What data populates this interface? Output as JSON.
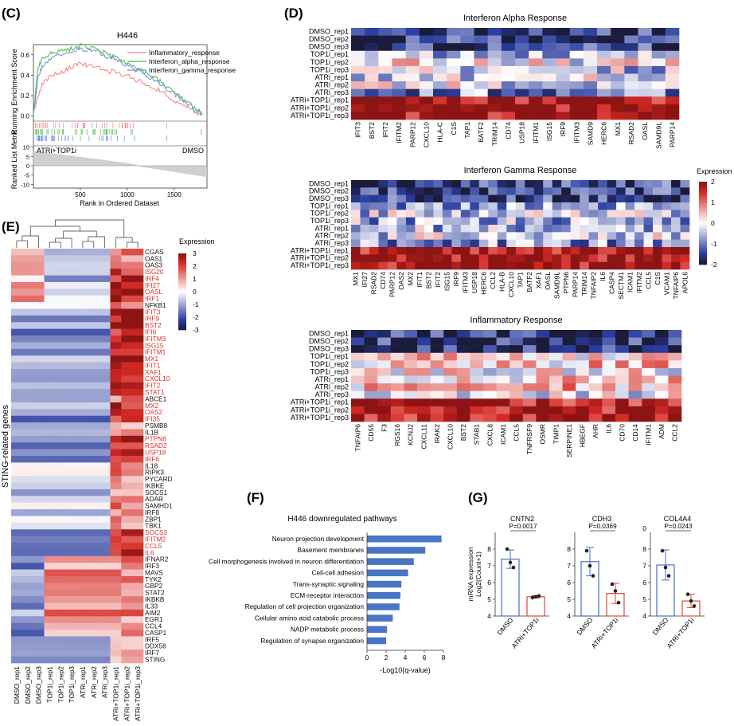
{
  "panel_labels": {
    "c": "(C)",
    "d": "(D)",
    "e": "(E)",
    "f": "(F)",
    "g": "(G)"
  },
  "gsea": {
    "title": "H446",
    "ylabel_top": "Running Enrichment Score",
    "ylabel_bottom": "Ranked List Metric",
    "xlabel": "Rank in Ordered Dataset",
    "left_group": "ATRi+TOP1i",
    "right_group": "DMSO",
    "y_ticks": [
      "0.6",
      "0.4",
      "0.2",
      "0.0"
    ],
    "metric_ticks": [
      "10",
      "5",
      "0",
      "-5",
      "-10"
    ],
    "x_ticks": [
      "500",
      "1000",
      "1500"
    ],
    "colors": {
      "inflammatory": "#f08080",
      "alpha": "#49b649",
      "gamma": "#6f8fd8"
    }
  },
  "chart_data": [
    {
      "type": "line",
      "title": "H446",
      "xlabel": "Rank in Ordered Dataset",
      "ylabel": "Running Enrichment Score",
      "xlim": [
        0,
        1850
      ],
      "ylim": [
        -0.05,
        0.7
      ],
      "series": [
        {
          "name": "Inflammatory_response",
          "x": [
            0,
            50,
            100,
            200,
            300,
            400,
            500,
            600,
            700,
            800,
            900,
            1000,
            1100,
            1200,
            1300,
            1400,
            1500,
            1600,
            1700,
            1800
          ],
          "values": [
            0.02,
            0.2,
            0.33,
            0.4,
            0.42,
            0.48,
            0.52,
            0.49,
            0.47,
            0.44,
            0.42,
            0.4,
            0.35,
            0.32,
            0.27,
            0.22,
            0.16,
            0.11,
            0.06,
            0.01
          ]
        },
        {
          "name": "Interferon_alpha_response",
          "x": [
            0,
            50,
            100,
            200,
            300,
            400,
            500,
            600,
            700,
            800,
            900,
            1000,
            1100,
            1200,
            1300,
            1400,
            1500,
            1600,
            1700,
            1800
          ],
          "values": [
            0.02,
            0.48,
            0.58,
            0.62,
            0.64,
            0.66,
            0.69,
            0.67,
            0.64,
            0.6,
            0.57,
            0.52,
            0.47,
            0.42,
            0.37,
            0.3,
            0.23,
            0.16,
            0.09,
            0.02
          ]
        },
        {
          "name": "Interferon_gamma_response",
          "x": [
            0,
            50,
            100,
            200,
            300,
            400,
            500,
            600,
            700,
            800,
            900,
            1000,
            1100,
            1200,
            1300,
            1400,
            1500,
            1600,
            1700,
            1800
          ],
          "values": [
            0.02,
            0.38,
            0.5,
            0.58,
            0.6,
            0.63,
            0.66,
            0.64,
            0.62,
            0.58,
            0.55,
            0.5,
            0.45,
            0.4,
            0.35,
            0.29,
            0.22,
            0.15,
            0.08,
            0.02
          ]
        }
      ]
    },
    {
      "type": "heatmap",
      "title": "Interferon Alpha Response",
      "rows": [
        "DMSO_rep1",
        "DMSO_rep2",
        "DMSO_rep3",
        "TOP1i_rep1",
        "TOP1i_rep2",
        "TOP1i_rep3",
        "ATRi_rep1",
        "ATRi_rep2",
        "ATRi_rep3",
        "ATRi+TOP1i_rep1",
        "ATRi+TOP1i_rep2",
        "ATRi+TOP1i_rep3"
      ],
      "columns": [
        "IFIT3",
        "BST2",
        "IFIT2",
        "IFITM2",
        "PARP12",
        "CXCL10",
        "HLA-C",
        "C1S",
        "TAP1",
        "BATF2",
        "TRIM14",
        "CD74",
        "USP18",
        "IFITM1",
        "ISG15",
        "IRF9",
        "IFITM3",
        "SAMD9",
        "HERC6",
        "MX1",
        "RSAD2",
        "OASL",
        "SAMD9L",
        "PARP14"
      ],
      "row_means": [
        -1.6,
        -1.6,
        -1.6,
        -0.6,
        0.0,
        -0.4,
        -0.2,
        -0.2,
        -0.9,
        1.9,
        2.0,
        2.0
      ],
      "legend": "Expression",
      "range": [
        -2,
        2
      ]
    },
    {
      "type": "heatmap",
      "title": "Interferon Gamma Response",
      "rows": [
        "DMSO_rep1",
        "DMSO_rep2",
        "DMSO_rep3",
        "TOP1i_rep1",
        "TOP1i_rep2",
        "TOP1i_rep3",
        "ATRi_rep1",
        "ATRi_rep2",
        "ATRi_rep3",
        "ATRi+TOP1i_rep1",
        "ATRi+TOP1i_rep2",
        "ATRi+TOP1i_rep3"
      ],
      "columns": [
        "MX1",
        "IFI27",
        "RSAD2",
        "CD74",
        "PARP12",
        "OAS2",
        "MX2",
        "IFIT1",
        "BST2",
        "IFIT2",
        "ISG15",
        "IRF9",
        "IFITM3",
        "USP18",
        "HERC6",
        "CCL2",
        "HLA-B",
        "CXCL10",
        "TAP1",
        "BATF2",
        "XAF1",
        "OASL",
        "SAMD9L",
        "PTPN6",
        "PARP14",
        "TRIM14",
        "TNFAIP2",
        "IL6",
        "CASP4",
        "SECTM1",
        "ICAM1",
        "IFITM2",
        "CCL5",
        "C1S",
        "VCAM1",
        "TNFAIP6",
        "APOL6"
      ],
      "row_means": [
        -1.5,
        -1.5,
        -1.5,
        -0.8,
        -0.4,
        -0.6,
        -0.5,
        -0.3,
        -0.8,
        1.9,
        2.0,
        2.0
      ],
      "legend": "Expression",
      "range": [
        -2,
        2
      ]
    },
    {
      "type": "heatmap",
      "title": "Inflammatory Response",
      "rows": [
        "DMSO_rep1",
        "DMSO_rep2",
        "DMSO_rep3",
        "TOP1i_rep1",
        "TOP1i_rep2",
        "TOP1i_rep3",
        "ATRi_rep1",
        "ATRi_rep2",
        "ATRi_rep3",
        "ATRi+TOP1i_rep1",
        "ATRi+TOP1i_rep2",
        "ATRi+TOP1i_rep3"
      ],
      "columns": [
        "TNFAIP6",
        "CD55",
        "F3",
        "RGS16",
        "KCNJ2",
        "CXCL11",
        "IRAK2",
        "CXCL10",
        "BST2",
        "STAB1",
        "CXCL8",
        "ICAM1",
        "CCL5",
        "TNFRSF9",
        "OSMR",
        "TIMP1",
        "SERPINE1",
        "HBEGF",
        "AHR",
        "IL6",
        "CD70",
        "CD14",
        "IFITM1",
        "ADM",
        "CCL2"
      ],
      "row_means": [
        -1.7,
        -1.7,
        -1.7,
        0.2,
        0.3,
        0.0,
        0.3,
        0.4,
        -0.2,
        1.8,
        1.9,
        1.9
      ],
      "legend": "",
      "range": [
        -2,
        2
      ]
    },
    {
      "type": "heatmap",
      "title": "",
      "ylabel": "STING-related genes",
      "columns": [
        "DMSO_rep1",
        "DMSO_rep2",
        "DMSO_rep3",
        "TOP1i_rep1",
        "TOP1i_rep2",
        "TOP1i_rep3",
        "ATRi_rep1",
        "ATRi_rep2",
        "ATRi_rep3",
        "ATRi+TOP1i_rep1",
        "ATRi+TOP1i_rep2",
        "ATRi+TOP1i_rep3"
      ],
      "rows": [
        "CGAS",
        "OAS1",
        "OAS3",
        "ISG20",
        "IRF4",
        "IFI27",
        "OASL",
        "IRF1",
        "NFKB1",
        "IFIT3",
        "IRF9",
        "BST2",
        "IFI6",
        "IFITM3",
        "ISG15",
        "IFITM1",
        "MX1",
        "IFIT1",
        "XAF1",
        "CXCL10",
        "IFIT2",
        "STAT1",
        "ABCE1",
        "MX2",
        "OAS2",
        "IFI35",
        "PSMB8",
        "IL1B",
        "PTPN6",
        "RSAD2",
        "USP18",
        "IRF6",
        "IL18",
        "RIPK3",
        "PYCARD",
        "IKBKE",
        "SOCS1",
        "ADAR",
        "SAMHD1",
        "IRF8",
        "ZBP1",
        "TBK1",
        "SOCS3",
        "IFITM2",
        "CCL5",
        "IL6",
        "IFNAR2",
        "IRF3",
        "MAVS",
        "TYK2",
        "GBP2",
        "STAT2",
        "IKBKB",
        "IL33",
        "AIM2",
        "EGR1",
        "CCL4",
        "CASP1",
        "IRF5",
        "DDX58",
        "IRF7",
        "STING"
      ],
      "red_rows": [
        "ISG20",
        "IRF4",
        "IFI27",
        "OASL",
        "IRF1",
        "IFIT3",
        "IRF9",
        "BST2",
        "IFI6",
        "IFITM3",
        "ISG15",
        "IFITM1",
        "MX1",
        "IFIT1",
        "XAF1",
        "CXCL10",
        "IFIT2",
        "STAT1",
        "MX2",
        "OAS2",
        "IFI35",
        "PTPN6",
        "RSAD2",
        "USP18",
        "IRF6",
        "SOCS3",
        "IFITM2",
        "CCL5",
        "IL6"
      ],
      "legend": "Expression",
      "legend_ticks": [
        "3",
        "2",
        "1",
        "0",
        "-1",
        "-2",
        "-3"
      ],
      "range": [
        -3,
        3
      ]
    },
    {
      "type": "bar",
      "orientation": "horizontal",
      "title": "H446 downregulated pathways",
      "xlabel": "-Log10(q-value)",
      "xlim": [
        0,
        8
      ],
      "x_ticks": [
        "0",
        "2",
        "4",
        "6",
        "8"
      ],
      "categories": [
        "Neuron projection development",
        "Basement membranes",
        "Cell morphogenesis involved in neuron differentiation",
        "Cell-cell adhesion",
        "Trans-synaptic signaling",
        "ECM-receptor interaction",
        "Regulation of cell projection organization",
        "Cellular amino acid catabolic process",
        "NADP metabolic process",
        "Regulation of synapse organization"
      ],
      "values": [
        7.8,
        6.1,
        4.9,
        4.3,
        3.6,
        3.5,
        3.4,
        2.7,
        2.1,
        2.0
      ],
      "color": "#4a74c4"
    },
    {
      "type": "bar",
      "title": "CNTN2",
      "ylabel": "mRNA expression Log2(Count+1)",
      "categories": [
        "DMSO",
        "ATRi+TOP1i"
      ],
      "values": [
        7.4,
        5.15
      ],
      "errors": [
        0.55,
        0.07
      ],
      "points": [
        [
          8.0,
          7.2,
          6.9
        ],
        [
          5.1,
          5.15,
          5.2
        ]
      ],
      "ylim": [
        4,
        9
      ],
      "y_ticks": [
        "4",
        "5",
        "6",
        "7",
        "8"
      ],
      "pvalue": "P=0.0017"
    },
    {
      "type": "bar",
      "title": "CDH3",
      "categories": [
        "DMSO",
        "ATRi+TOP1i"
      ],
      "values": [
        7.25,
        5.35
      ],
      "errors": [
        0.85,
        0.6
      ],
      "points": [
        [
          7.9,
          7.0,
          6.4
        ],
        [
          5.9,
          5.5,
          4.8
        ]
      ],
      "ylim": [
        4,
        9
      ],
      "y_ticks": [
        "4",
        "5",
        "6",
        "7",
        "8"
      ],
      "pvalue": "P=0.0369"
    },
    {
      "type": "bar",
      "title": "COL4A4",
      "categories": [
        "DMSO",
        "ATRi+TOP1i"
      ],
      "values": [
        7.05,
        4.9
      ],
      "errors": [
        0.9,
        0.4
      ],
      "points": [
        [
          7.9,
          6.9,
          6.4
        ],
        [
          5.3,
          4.9,
          4.6
        ]
      ],
      "ylim": [
        4,
        9
      ],
      "y_ticks": [
        "4",
        "5",
        "6",
        "7",
        "8"
      ],
      "top_tick": "0",
      "pvalue": "P=0.0243"
    }
  ],
  "colors": {
    "dmso_bar": "#4a6fc4",
    "combo_bar": "#e0453a",
    "heat_low": "#1b1b3a",
    "heat_mid": "#ffffff",
    "heat_high": "#c81d1d",
    "red_label": "#d9302a"
  }
}
